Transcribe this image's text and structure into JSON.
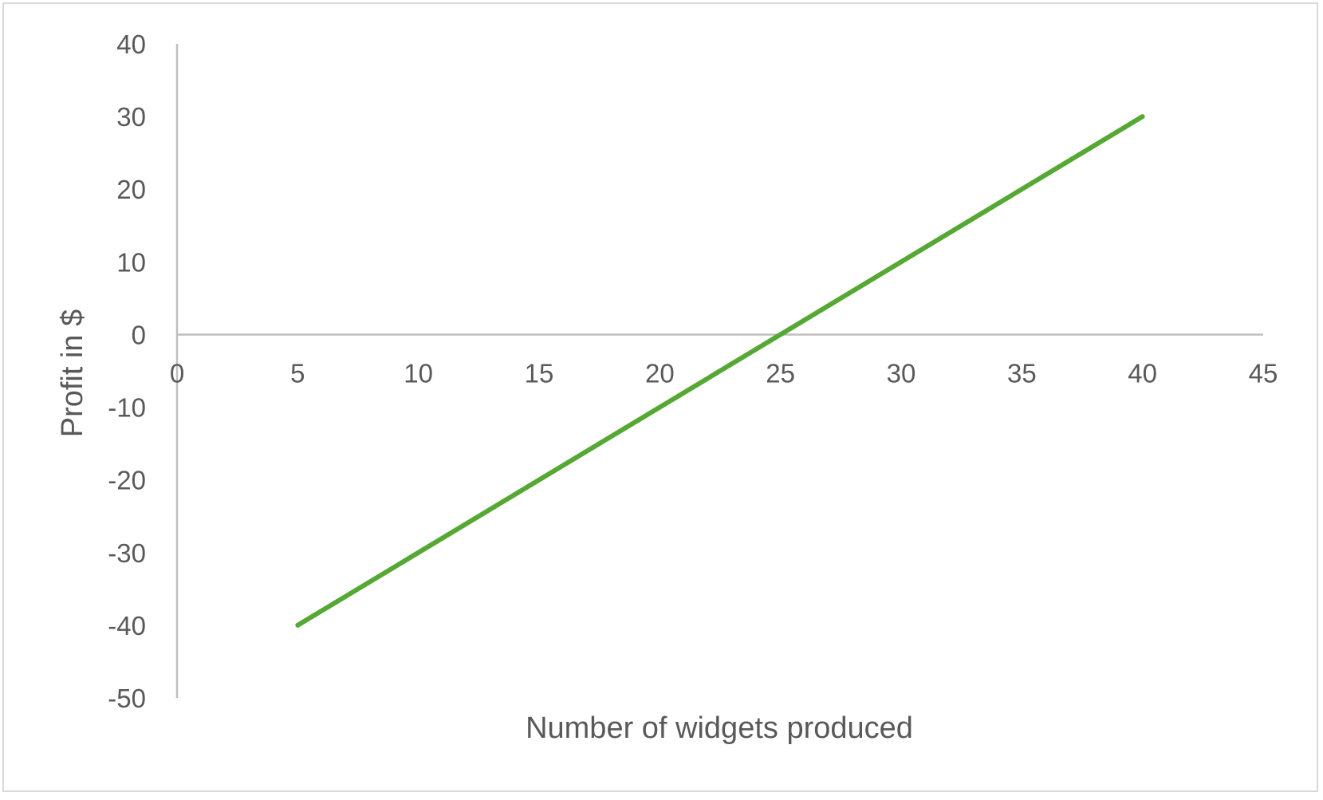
{
  "chart_data": {
    "type": "line",
    "title": "",
    "xlabel": "Number of widgets produced",
    "ylabel": "Profit in $",
    "xlim": [
      0,
      45
    ],
    "ylim": [
      -50,
      40
    ],
    "xticks": [
      0,
      5,
      10,
      15,
      20,
      25,
      30,
      35,
      40,
      45
    ],
    "yticks": [
      40,
      30,
      20,
      10,
      0,
      -10,
      -20,
      -30,
      -40,
      -50
    ],
    "xtick_labels": [
      "0",
      "5",
      "10",
      "15",
      "20",
      "25",
      "30",
      "35",
      "40",
      "45"
    ],
    "ytick_labels": [
      "40",
      "30",
      "20",
      "10",
      "0",
      "-10",
      "-20",
      "-30",
      "-40",
      "-50"
    ],
    "grid": false,
    "legend": "none",
    "series": [
      {
        "color": "#56a834",
        "x": [
          5,
          40
        ],
        "y": [
          -40,
          30
        ]
      }
    ],
    "axis_color": "#bfbfbf",
    "text_color": "#595959"
  }
}
